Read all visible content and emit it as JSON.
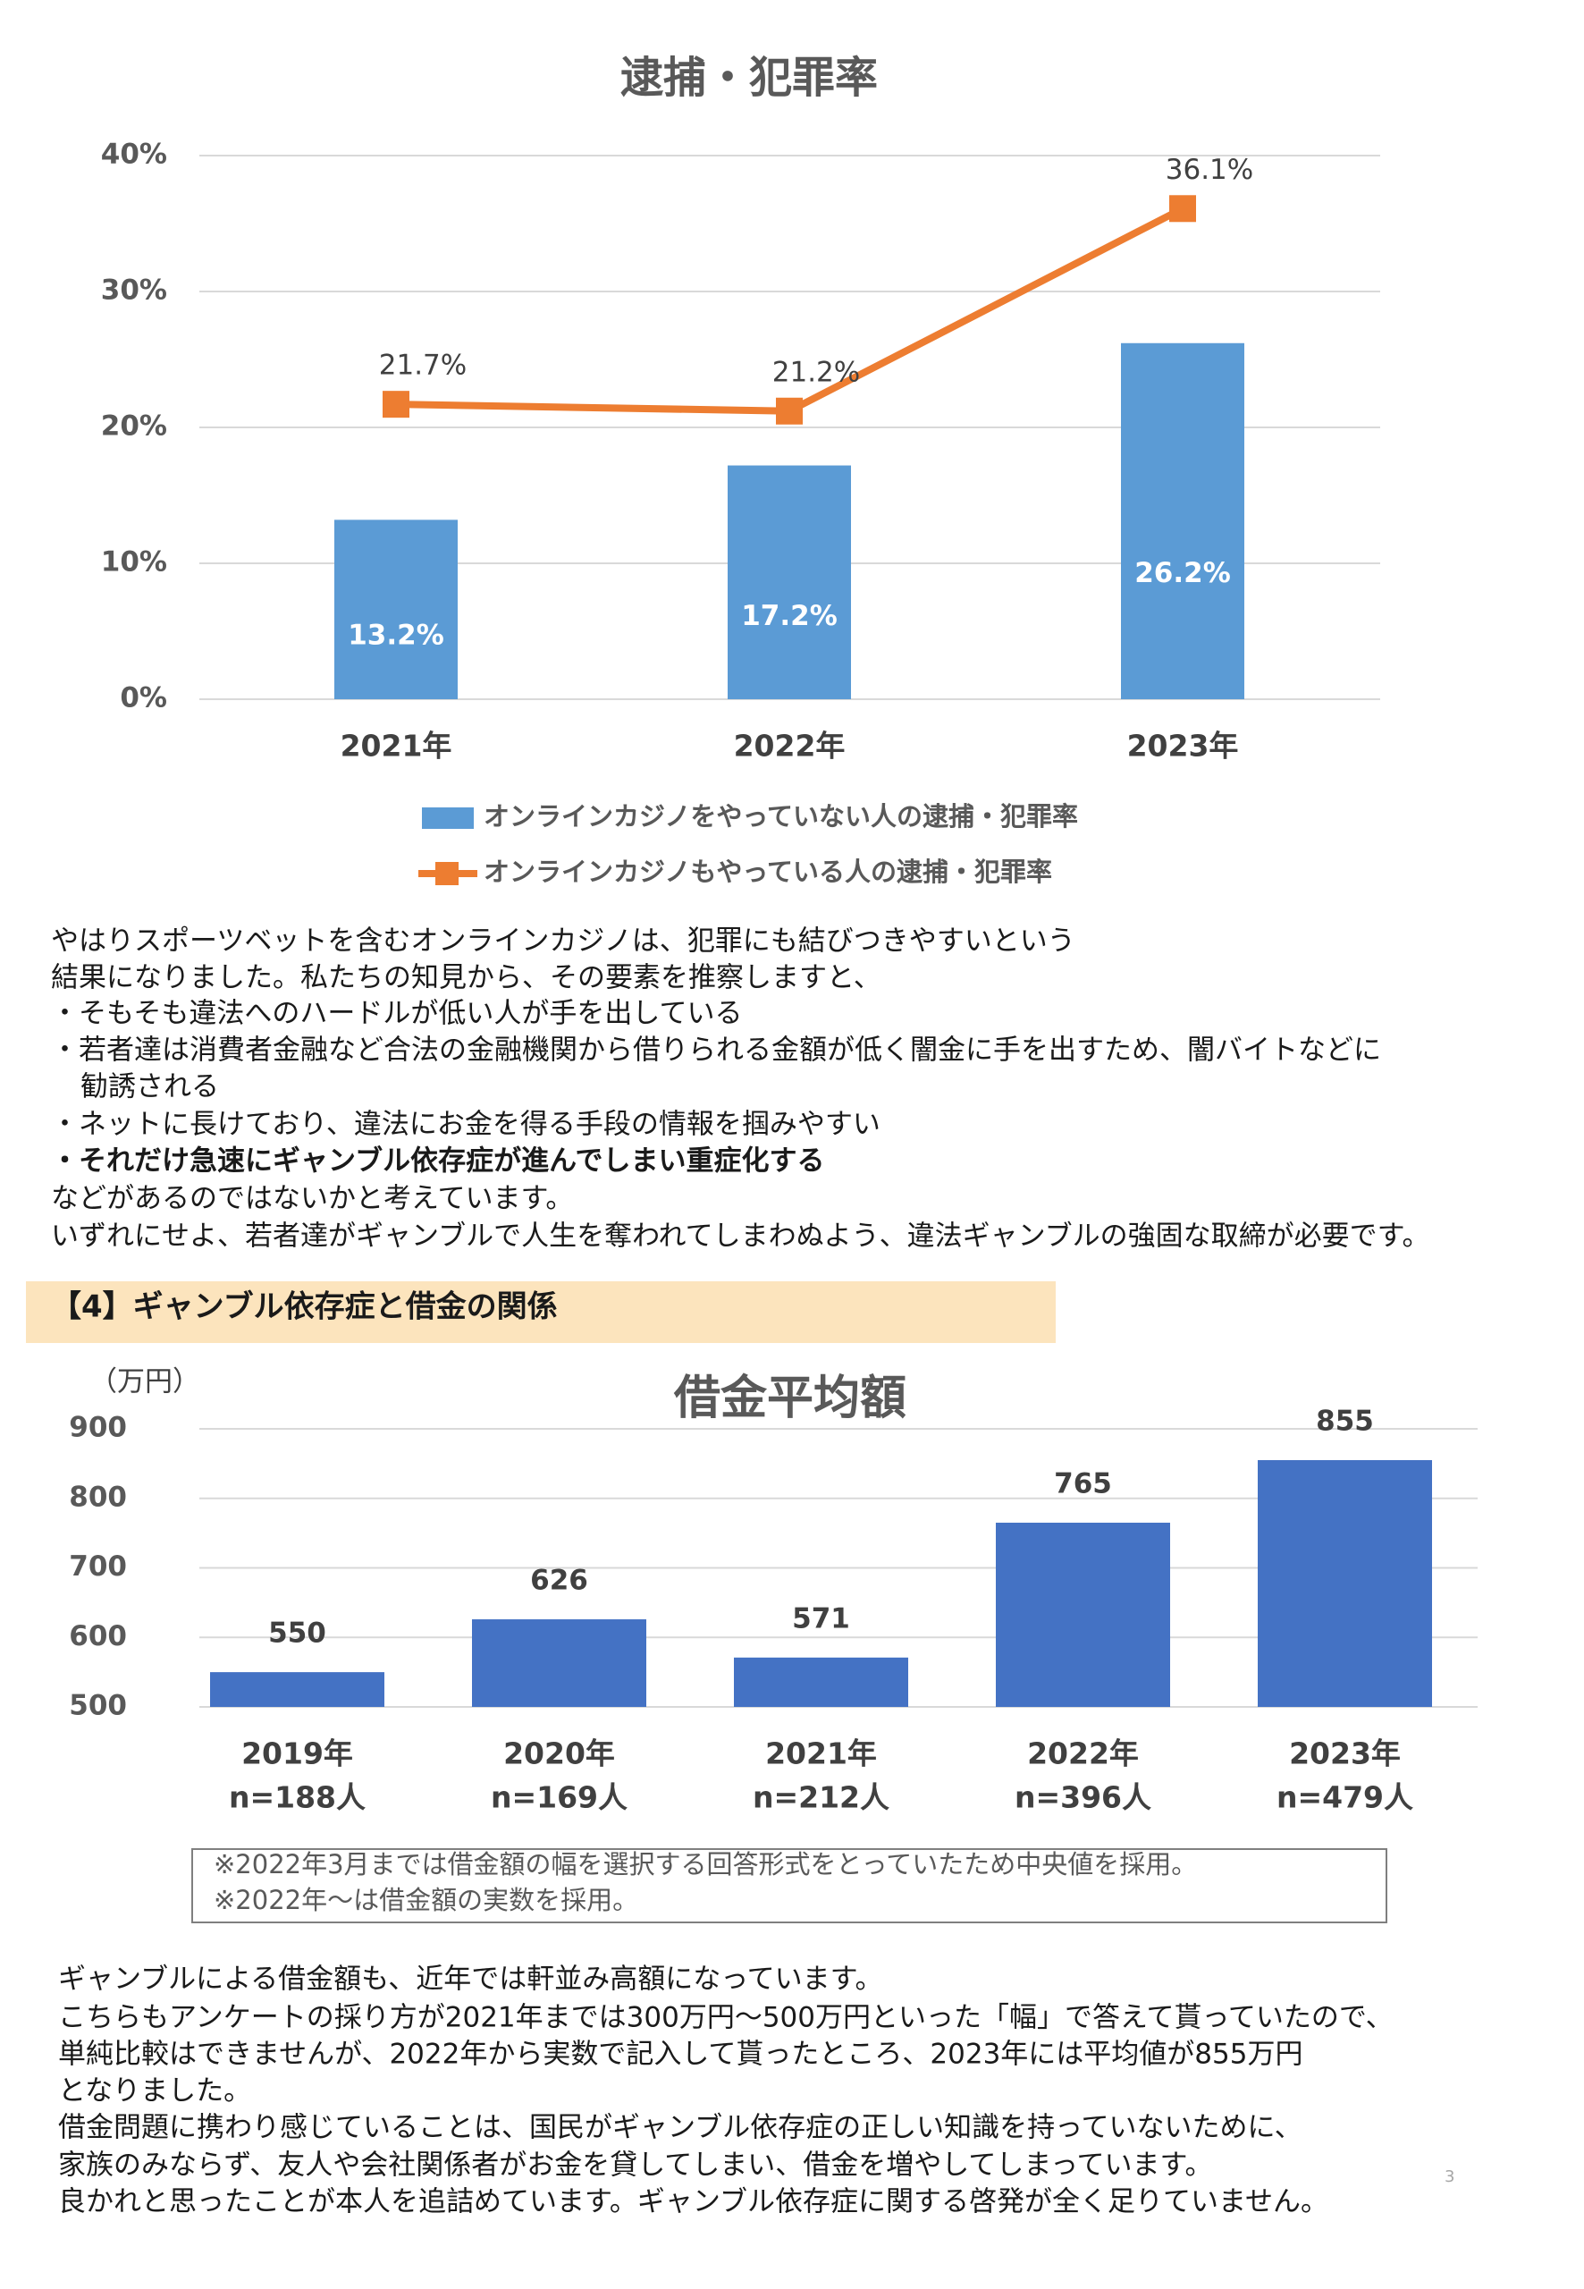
{
  "chart_data": [
    {
      "type": "combo",
      "title": "逮捕・犯罪率",
      "categories": [
        "2021年",
        "2022年",
        "2023年"
      ],
      "series": [
        {
          "name": "オンラインカジノをやっていない人の逮捕・犯罪率",
          "type": "bar",
          "color": "#5b9bd5",
          "values": [
            13.2,
            17.2,
            26.2
          ],
          "value_labels": [
            "13.2%",
            "17.2%",
            "26.2%"
          ]
        },
        {
          "name": "オンラインカジノもやっている人の逮捕・犯罪率",
          "type": "line",
          "color": "#ed7d31",
          "values": [
            21.7,
            21.2,
            36.1
          ],
          "value_labels": [
            "21.7%",
            "21.2%",
            "36.1%"
          ]
        }
      ],
      "ylim": [
        0,
        40
      ],
      "yticks": [
        {
          "value": 0,
          "label": "0%"
        },
        {
          "value": 10,
          "label": "10%"
        },
        {
          "value": 20,
          "label": "20%"
        },
        {
          "value": 30,
          "label": "30%"
        },
        {
          "value": 40,
          "label": "40%"
        }
      ],
      "grid": true,
      "legend": "bottom"
    },
    {
      "type": "bar",
      "title": "借金平均額",
      "y_label": "（万円）",
      "categories": [
        "2019年",
        "2020年",
        "2021年",
        "2022年",
        "2023年"
      ],
      "sample_sizes": [
        "n=188人",
        "n=169人",
        "n=212人",
        "n=396人",
        "n=479人"
      ],
      "values": [
        550,
        626,
        571,
        765,
        855
      ],
      "color": "#4472c4",
      "ylim": [
        500,
        900
      ],
      "yticks": [
        500,
        600,
        700,
        800,
        900
      ],
      "grid": true
    }
  ],
  "paragraph_1": [
    "やはりスポーツベットを含むオンラインカジノは、犯罪にも結びつきやすいという",
    "結果になりました。私たちの知見から、その要素を推察しますと、",
    "・そもそも違法へのハードルが低い人が手を出している",
    "・若者達は消費者金融など合法の金融機関から借りられる金額が低く闇金に手を出すため、闇バイトなどに",
    "勧誘される",
    "・ネットに長けており、違法にお金を得る手段の情報を掴みやすい",
    "・それだけ急速にギャンブル依存症が進んでしまい重症化する",
    "などがあるのではないかと考えています。",
    "いずれにせよ、若者達がギャンブルで人生を奪われてしまわぬよう、違法ギャンブルの強固な取締が必要です。"
  ],
  "section_heading": "【4】ギャンブル依存症と借金の関係",
  "note": [
    "※2022年3月までは借金額の幅を選択する回答形式をとっていたため中央値を採用。",
    "※2022年～は借金額の実数を採用。"
  ],
  "paragraph_2": [
    "ギャンブルによる借金額も、近年では軒並み高額になっています。",
    "こちらもアンケートの採り方が2021年までは300万円～500万円といった「幅」で答えて貰っていたので、",
    "単純比較はできませんが、2022年から実数で記入して貰ったところ、2023年には平均値が855万円",
    "となりました。",
    "借金問題に携わり感じていることは、国民がギャンブル依存症の正しい知識を持っていないために、",
    "家族のみならず、友人や会社関係者がお金を貸してしまい、借金を増やしてしまっています。",
    "良かれと思ったことが本人を追詰めています。ギャンブル依存症に関する啓発が全く足りていません。"
  ],
  "page_number": 3
}
